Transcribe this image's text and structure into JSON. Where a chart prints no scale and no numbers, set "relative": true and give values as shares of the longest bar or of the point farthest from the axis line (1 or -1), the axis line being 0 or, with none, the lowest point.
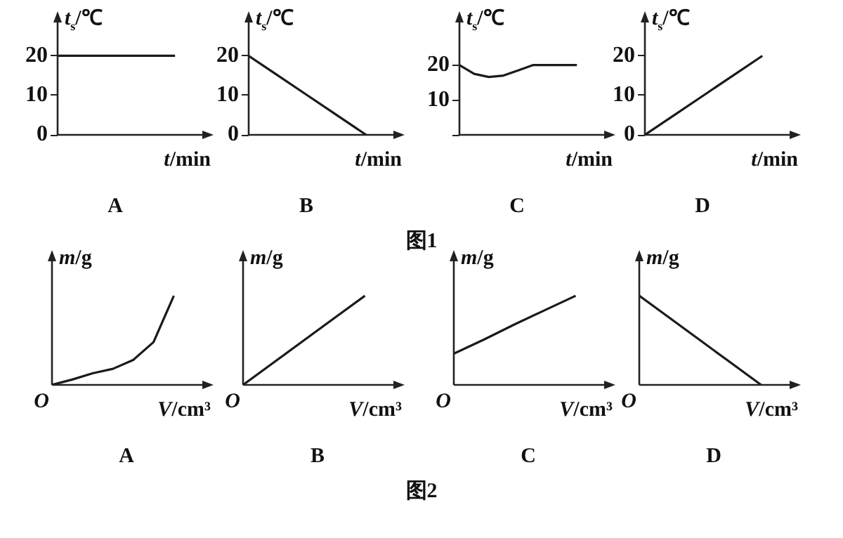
{
  "chart_data": [
    {
      "type": "line",
      "title": "A",
      "xlabel": "t/min",
      "ylabel": "t$_{s}$/℃",
      "annotations": [
        "图1"
      ],
      "categories": [
        null,
        null,
        null,
        null,
        null
      ],
      "ylim": [
        0,
        30
      ],
      "yticks": [
        0,
        10,
        20
      ],
      "series": [
        {
          "color": "#1a1a1a",
          "values": [
            20,
            20,
            20,
            20,
            20
          ]
        }
      ]
    },
    {
      "type": "line",
      "title": "B",
      "xlabel": "t/min",
      "ylabel": "t$_{s}$/℃",
      "categories": [
        null,
        null,
        null,
        null,
        null
      ],
      "ylim": [
        0,
        30
      ],
      "yticks": [
        0,
        10,
        20
      ],
      "series": [
        {
          "color": "#1a1a1a",
          "values": [
            20,
            15,
            10,
            5,
            0
          ]
        }
      ]
    },
    {
      "type": "line",
      "title": "C",
      "xlabel": "t/min",
      "ylabel": "t$_{s}$/℃",
      "categories": [
        null,
        null,
        null,
        null,
        null,
        null,
        null,
        null,
        null
      ],
      "ylim": [
        0,
        34
      ],
      "yticks": [
        {
          "value": 0,
          "label": null
        },
        10,
        20
      ],
      "series": [
        {
          "color": "#1a1a1a",
          "values": [
            20,
            17.5,
            16.6,
            17,
            18.5,
            20,
            20,
            20,
            20
          ]
        }
      ]
    },
    {
      "type": "line",
      "title": "D",
      "xlabel": "t/min",
      "ylabel": "t$_{s}$/℃",
      "categories": [
        null,
        null,
        null,
        null,
        null
      ],
      "ylim": [
        0,
        30
      ],
      "yticks": [
        0,
        10,
        20
      ],
      "series": [
        {
          "color": "#1a1a1a",
          "values": [
            0,
            5,
            10,
            15,
            20
          ]
        }
      ]
    },
    {
      "type": "line",
      "title": "A",
      "xlabel": "V/cm³",
      "ylabel": "m/g",
      "annotations": [
        "O",
        "图2"
      ],
      "relative": true,
      "categories": [
        null,
        null,
        null,
        null,
        null,
        null,
        null
      ],
      "series": [
        {
          "color": "#1a1a1a",
          "values": [
            0,
            0.06,
            0.13,
            0.18,
            0.28,
            0.48,
            1
          ]
        }
      ]
    },
    {
      "type": "line",
      "title": "B",
      "xlabel": "V/cm³",
      "ylabel": "m/g",
      "annotations": [
        "O"
      ],
      "relative": true,
      "categories": [
        null,
        null,
        null,
        null,
        null
      ],
      "series": [
        {
          "color": "#1a1a1a",
          "values": [
            0,
            0.25,
            0.5,
            0.75,
            1
          ]
        }
      ]
    },
    {
      "type": "line",
      "title": "C",
      "xlabel": "V/cm³",
      "ylabel": "m/g",
      "annotations": [
        "O"
      ],
      "relative": true,
      "categories": [
        null,
        null,
        null,
        null,
        null
      ],
      "series": [
        {
          "color": "#1a1a1a",
          "values": [
            0.35,
            0.51,
            0.68,
            0.84,
            1
          ]
        }
      ]
    },
    {
      "type": "line",
      "title": "D",
      "xlabel": "V/cm³",
      "ylabel": "m/g",
      "annotations": [
        "O"
      ],
      "relative": true,
      "categories": [
        null,
        null,
        null,
        null,
        null
      ],
      "series": [
        {
          "color": "#1a1a1a",
          "values": [
            1,
            0.75,
            0.5,
            0.25,
            0
          ]
        }
      ]
    }
  ]
}
